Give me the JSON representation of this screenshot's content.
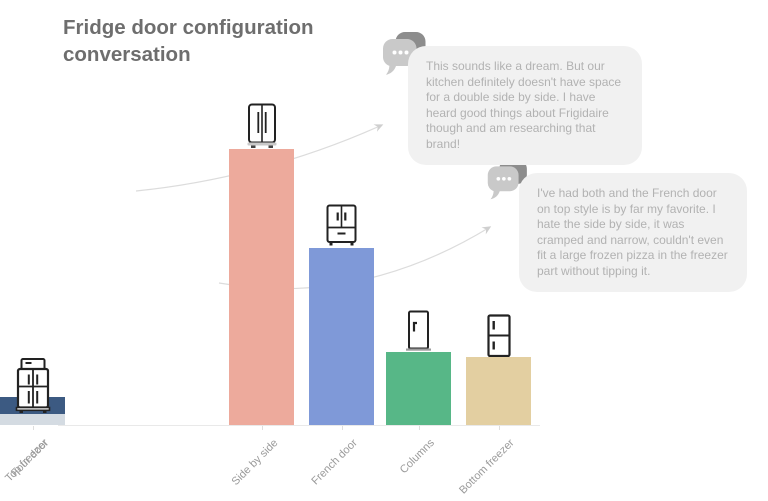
{
  "title": "Fridge door configuration conversation",
  "chart_data": {
    "type": "bar",
    "title": "Fridge door configuration conversation",
    "categories": [
      "Side by side",
      "French door",
      "Columns",
      "Bottom freezer",
      "Top freezer",
      "Four door"
    ],
    "values": [
      276,
      177,
      73,
      68,
      28,
      11
    ],
    "values_note": "relative popularity, estimated from bar pixel heights (no y-axis shown)",
    "colors": [
      "#edaa9c",
      "#7f99d8",
      "#57b787",
      "#e3cfa1",
      "#3c5a82",
      "#d4dbe2"
    ],
    "icons": [
      "side-by-side-fridge-icon",
      "french-door-fridge-icon",
      "single-column-fridge-icon",
      "bottom-freezer-fridge-icon",
      "top-freezer-fridge-icon",
      "four-door-fridge-icon"
    ],
    "xlabel": "",
    "ylabel": "",
    "grid": false,
    "legend": false,
    "label_rotation_deg": -45
  },
  "comments": [
    {
      "text": "This sounds like a dream. But our kitchen definitely doesn't have space for a double side by side. I have heard good things about Frigidaire though and am researching that brand!"
    },
    {
      "text": "I've had both and the French door on top style is by far my favorite. I hate the side by side, it was cramped and narrow, couldn't even fit a large frozen pizza in the freezer part without tipping it."
    }
  ],
  "colors": {
    "title_text": "#6e6e6e",
    "bubble_bg": "#f1f1f1",
    "bubble_text": "#b2b2b2",
    "axis_line": "#e9e9e9",
    "tick": "#dedede",
    "xlabel_text": "#9a9a9a",
    "arrow": "#dcdcdc",
    "chat_icon_dark": "#8d8d8d",
    "chat_icon_light": "#c9c9c9",
    "fridge_line": "#222222"
  }
}
